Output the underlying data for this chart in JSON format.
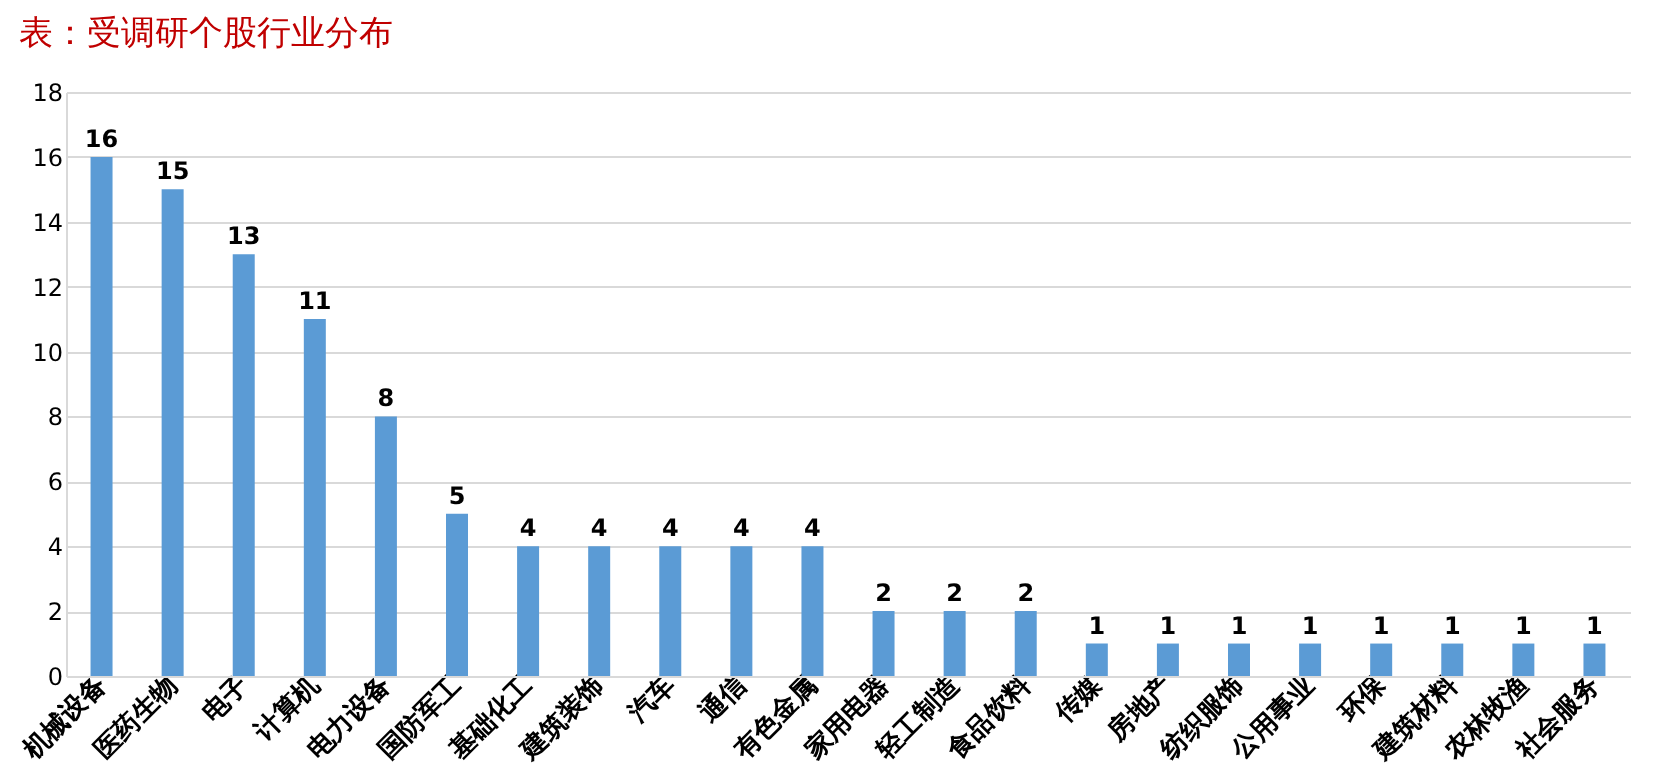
{
  "chart_data": {
    "type": "bar",
    "title": "表：受调研个股行业分布",
    "categories": [
      "机械设备",
      "医药生物",
      "电子",
      "计算机",
      "电力设备",
      "国防军工",
      "基础化工",
      "建筑装饰",
      "汽车",
      "通信",
      "有色金属",
      "家用电器",
      "轻工制造",
      "食品饮料",
      "传媒",
      "房地产",
      "纺织服饰",
      "公用事业",
      "环保",
      "建筑材料",
      "农林牧渔",
      "社会服务"
    ],
    "values": [
      16,
      15,
      13,
      11,
      8,
      5,
      4,
      4,
      4,
      4,
      4,
      2,
      2,
      2,
      1,
      1,
      1,
      1,
      1,
      1,
      1,
      1
    ],
    "color": "#5b9bd5",
    "ylim": [
      0,
      18
    ],
    "yticks": [
      0,
      2,
      4,
      6,
      8,
      10,
      12,
      14,
      16,
      18
    ],
    "grid": "y",
    "data_labels": true
  }
}
